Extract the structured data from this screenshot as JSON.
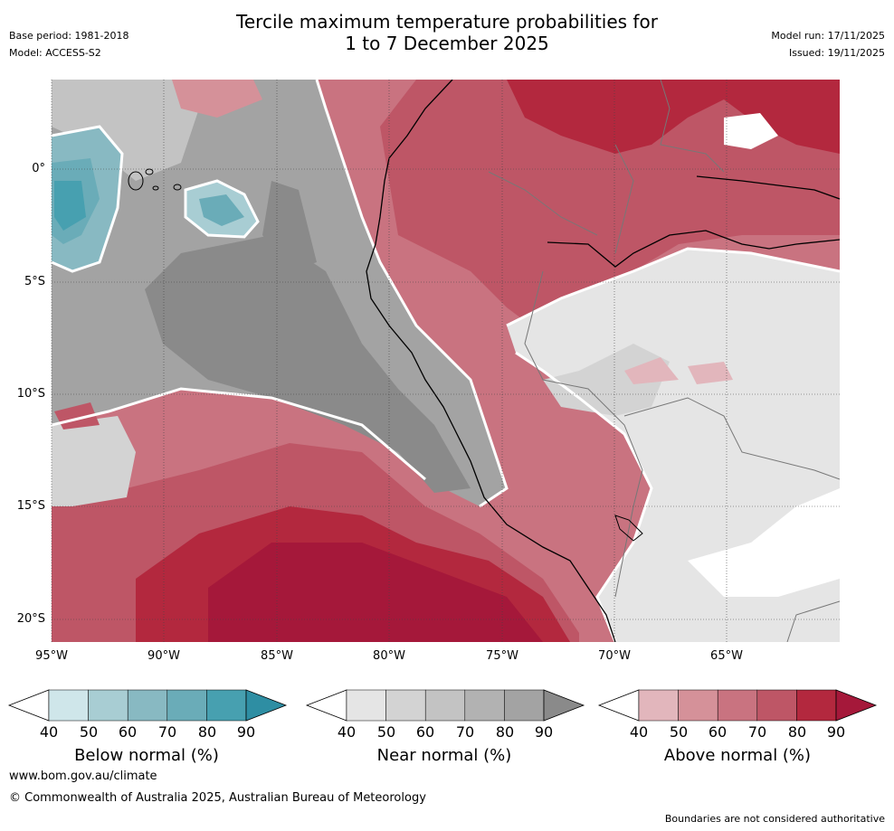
{
  "header": {
    "title_line1": "Tercile maximum temperature probabilities for",
    "title_line2": "1 to 7 December 2025",
    "base_period": "Base period: 1981-2018",
    "model": "Model: ACCESS-S2",
    "model_run": "Model run: 17/11/2025",
    "issued": "Issued: 19/11/2025"
  },
  "map": {
    "lat_labels": [
      "0°",
      "5°S",
      "10°S",
      "15°S",
      "20°S"
    ],
    "lon_labels": [
      "95°W",
      "90°W",
      "85°W",
      "80°W",
      "75°W",
      "70°W",
      "65°W"
    ],
    "lat_values": [
      0,
      -5,
      -10,
      -15,
      -20
    ],
    "lon_values": [
      -95,
      -90,
      -85,
      -80,
      -75,
      -70,
      -65
    ],
    "extent": {
      "lon_min": -95,
      "lon_max": -60,
      "lat_min": -21,
      "lat_max": 4
    }
  },
  "colorbars": [
    {
      "title": "Below normal (%)",
      "ticks": [
        "40",
        "50",
        "60",
        "70",
        "80",
        "90"
      ],
      "colors": [
        "#cfe6ea",
        "#a8cdd3",
        "#88b9c2",
        "#6aacb8",
        "#47a0b0",
        "#2e8ea3"
      ]
    },
    {
      "title": "Near normal (%)",
      "ticks": [
        "40",
        "50",
        "60",
        "70",
        "80",
        "90"
      ],
      "colors": [
        "#e5e5e5",
        "#d3d3d3",
        "#c3c3c3",
        "#b2b2b2",
        "#a3a3a3",
        "#8a8a8a"
      ]
    },
    {
      "title": "Above normal (%)",
      "ticks": [
        "40",
        "50",
        "60",
        "70",
        "80",
        "90"
      ],
      "colors": [
        "#e2b6bc",
        "#d59199",
        "#c97380",
        "#be5666",
        "#b3283e",
        "#a5183a"
      ]
    }
  ],
  "footer": {
    "url": "www.bom.gov.au/climate",
    "copyright": "© Commonwealth of Australia 2025, Australian Bureau of Meteorology",
    "disclaimer": "Boundaries are not considered authoritative"
  }
}
